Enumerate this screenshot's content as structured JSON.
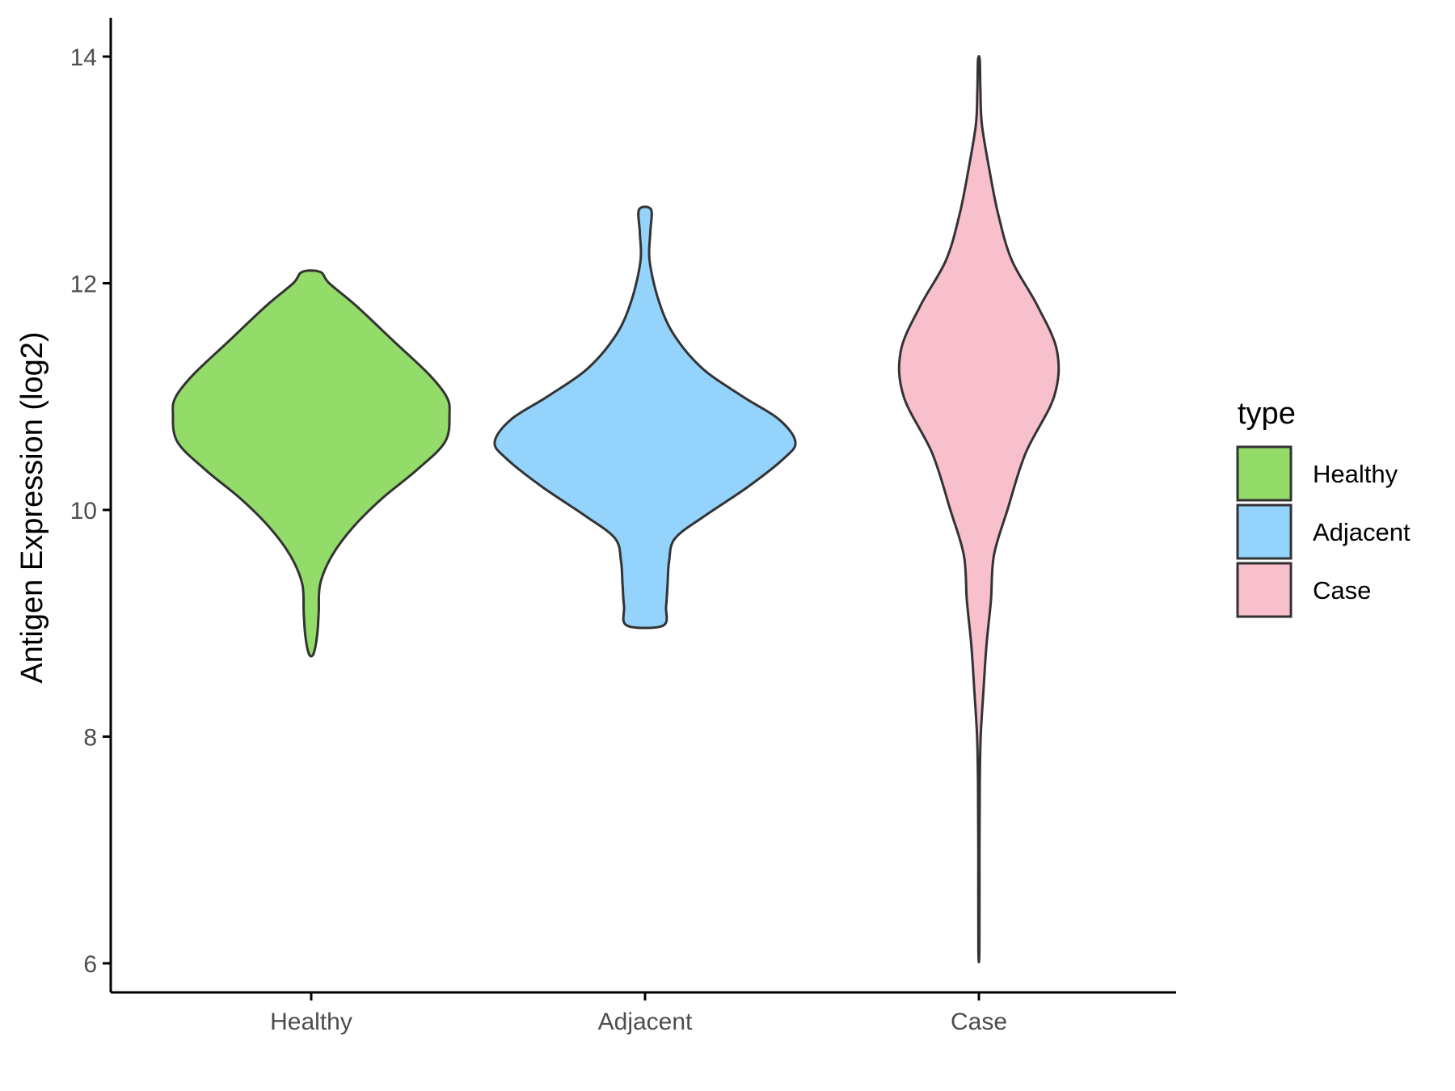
{
  "chart_data": {
    "type": "violin",
    "xlabel": "",
    "ylabel": "Antigen Expression (log2)",
    "ylim": [
      5.75,
      14.4
    ],
    "yticks": [
      6,
      8,
      10,
      12,
      14
    ],
    "yticklabels": [
      "6",
      "8",
      "10",
      "12",
      "14"
    ],
    "categories": [
      "Healthy",
      "Adjacent",
      "Case"
    ],
    "grid": false,
    "legend": {
      "title": "type",
      "position": "right",
      "entries": [
        "Healthy",
        "Adjacent",
        "Case"
      ]
    },
    "series": [
      {
        "name": "Healthy",
        "color": "#93dc6a",
        "range": [
          8.73,
          12.1
        ],
        "density_profile": [
          [
            8.73,
            0.015
          ],
          [
            8.9,
            0.04
          ],
          [
            9.1,
            0.05
          ],
          [
            9.35,
            0.06
          ],
          [
            9.6,
            0.14
          ],
          [
            9.85,
            0.28
          ],
          [
            10.1,
            0.47
          ],
          [
            10.35,
            0.7
          ],
          [
            10.6,
            0.89
          ],
          [
            10.85,
            0.92
          ],
          [
            11.0,
            0.9
          ],
          [
            11.2,
            0.78
          ],
          [
            11.5,
            0.54
          ],
          [
            11.8,
            0.3
          ],
          [
            12.0,
            0.12
          ],
          [
            12.1,
            0.06
          ]
        ]
      },
      {
        "name": "Adjacent",
        "color": "#94d3fc",
        "range": [
          8.98,
          12.65
        ],
        "density_profile": [
          [
            8.98,
            0.12
          ],
          [
            9.15,
            0.14
          ],
          [
            9.35,
            0.15
          ],
          [
            9.55,
            0.16
          ],
          [
            9.75,
            0.2
          ],
          [
            9.95,
            0.4
          ],
          [
            10.2,
            0.68
          ],
          [
            10.45,
            0.92
          ],
          [
            10.6,
            1.0
          ],
          [
            10.8,
            0.89
          ],
          [
            11.0,
            0.65
          ],
          [
            11.25,
            0.38
          ],
          [
            11.55,
            0.19
          ],
          [
            11.85,
            0.09
          ],
          [
            12.2,
            0.03
          ],
          [
            12.45,
            0.035
          ],
          [
            12.65,
            0.04
          ]
        ]
      },
      {
        "name": "Case",
        "color": "#f8c0cc",
        "range": [
          6.12,
          13.97
        ],
        "density_profile": [
          [
            6.12,
            0.003
          ],
          [
            7.0,
            0.004
          ],
          [
            7.6,
            0.006
          ],
          [
            8.0,
            0.012
          ],
          [
            8.4,
            0.03
          ],
          [
            8.8,
            0.05
          ],
          [
            9.2,
            0.08
          ],
          [
            9.6,
            0.1
          ],
          [
            10.0,
            0.19
          ],
          [
            10.5,
            0.31
          ],
          [
            11.0,
            0.5
          ],
          [
            11.4,
            0.52
          ],
          [
            11.8,
            0.39
          ],
          [
            12.2,
            0.22
          ],
          [
            12.6,
            0.13
          ],
          [
            13.0,
            0.07
          ],
          [
            13.4,
            0.02
          ],
          [
            13.7,
            0.01
          ],
          [
            13.97,
            0.006
          ]
        ]
      }
    ]
  }
}
